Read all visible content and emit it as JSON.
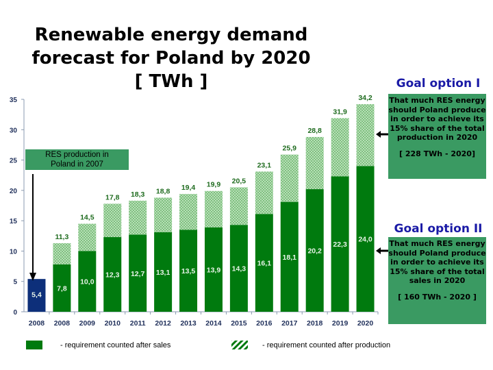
{
  "title_lines": [
    "Renewable energy demand",
    "forecast for Poland by 2020",
    "[ TWh ]"
  ],
  "chart_data": {
    "type": "bar",
    "stacked": true,
    "categories": [
      "2008",
      "2008",
      "2009",
      "2010",
      "2011",
      "2012",
      "2013",
      "2014",
      "2015",
      "2016",
      "2017",
      "2018",
      "2019",
      "2020"
    ],
    "series": [
      {
        "name": "- requirement counted after sales",
        "color": "#007a0e",
        "values": [
          5.4,
          7.8,
          10.0,
          12.3,
          12.7,
          13.1,
          13.5,
          13.9,
          14.3,
          16.1,
          18.1,
          20.2,
          22.3,
          24.0
        ],
        "labels": [
          "5,4",
          "7,8",
          "10,0",
          "12,3",
          "12,7",
          "13,1",
          "13,5",
          "13,9",
          "14,3",
          "16,1",
          "18,1",
          "20,2",
          "22,3",
          "24,0"
        ]
      },
      {
        "name": "- requirement counted after production",
        "color": "#9fd49f",
        "pattern": "hatched",
        "totals": [
          null,
          11.3,
          14.5,
          17.8,
          18.3,
          18.8,
          19.4,
          19.9,
          20.5,
          23.1,
          25.9,
          28.8,
          31.9,
          34.2
        ],
        "labels": [
          "",
          "11,3",
          "14,5",
          "17,8",
          "18,3",
          "18,8",
          "19,4",
          "19,9",
          "20,5",
          "23,1",
          "25,9",
          "28,8",
          "31,9",
          "34,2"
        ]
      }
    ],
    "first_bar_color": "#0d2f7a",
    "yticks": [
      0,
      5,
      10,
      15,
      20,
      25,
      30,
      35
    ],
    "ylim": [
      0,
      35
    ],
    "grid": false,
    "legend": "bottom"
  },
  "annotations": {
    "res_box": "RES production in Poland in 2007",
    "goal1": {
      "title": "Goal option I",
      "text": "That much RES energy should Poland produce in order to achieve its 15% share of the total production in 2020",
      "bracket": "[ 228 TWh - 2020]"
    },
    "goal2": {
      "title": "Goal option II",
      "text": "That much RES energy should Poland produce in order to achieve its 15% share of the total sales in 2020",
      "bracket": "[ 160 TWh - 2020 ]"
    }
  }
}
